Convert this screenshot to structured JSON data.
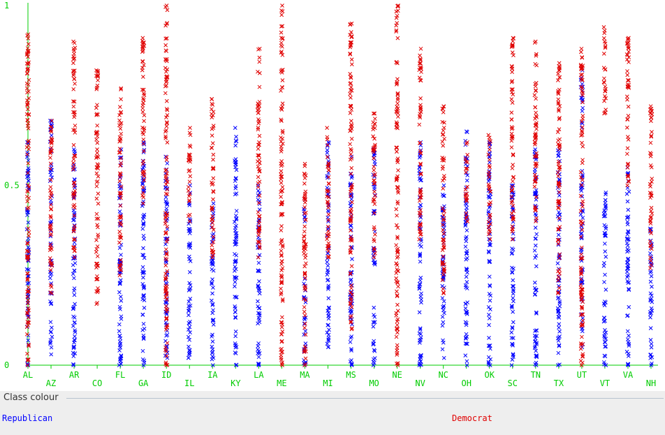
{
  "legend": {
    "title": "Class colour",
    "items": [
      {
        "label": "Republican",
        "color": "#0000ff"
      },
      {
        "label": "Democrat",
        "color": "#e00000"
      }
    ]
  },
  "chart_data": {
    "type": "scatter",
    "marker": "x",
    "x_axis": {
      "type": "categorical",
      "categories": [
        "AL",
        "AZ",
        "AR",
        "CO",
        "FL",
        "GA",
        "ID",
        "IL",
        "IA",
        "KY",
        "LA",
        "ME",
        "MA",
        "MI",
        "MS",
        "MO",
        "NE",
        "NV",
        "NC",
        "OH",
        "OK",
        "SC",
        "TN",
        "TX",
        "UT",
        "VT",
        "VA",
        "NH"
      ]
    },
    "y_axis": {
      "ylim": [
        0,
        1
      ],
      "ticks": [
        "0",
        "0.5",
        "1"
      ]
    },
    "axis_color": "#00cc00",
    "series": [
      {
        "name": "Republican",
        "color": "#0000ff",
        "values": {
          "AL": [
            [
              0.0,
              0.62
            ]
          ],
          "AZ": [
            [
              0.03,
              0.12
            ],
            [
              0.17,
              0.4
            ],
            [
              0.45,
              0.68
            ]
          ],
          "AR": [
            [
              0.0,
              0.6
            ]
          ],
          "CO": [],
          "FL": [
            [
              0.0,
              0.6
            ]
          ],
          "GA": [
            [
              0.0,
              0.62
            ]
          ],
          "ID": [
            [
              0.02,
              0.58
            ]
          ],
          "IL": [
            [
              0.02,
              0.5
            ]
          ],
          "IA": [
            [
              0.0,
              0.45
            ]
          ],
          "KY": [
            [
              0.0,
              0.66
            ]
          ],
          "LA": [
            [
              0.0,
              0.5
            ]
          ],
          "ME": [],
          "MA": [
            [
              0.0,
              0.24
            ],
            [
              0.4,
              0.46
            ]
          ],
          "MI": [
            [
              0.05,
              0.62
            ]
          ],
          "MS": [
            [
              0.0,
              0.58
            ]
          ],
          "MO": [
            [
              0.0,
              0.16
            ],
            [
              0.28,
              0.6
            ]
          ],
          "NE": [],
          "NV": [
            [
              0.0,
              0.62
            ]
          ],
          "NC": [
            [
              0.02,
              0.5
            ]
          ],
          "OH": [
            [
              0.0,
              0.65
            ]
          ],
          "OK": [
            [
              0.0,
              0.62
            ]
          ],
          "SC": [
            [
              0.0,
              0.5
            ]
          ],
          "TN": [
            [
              0.0,
              0.6
            ]
          ],
          "TX": [
            [
              0.0,
              0.6
            ]
          ],
          "UT": [
            [
              0.05,
              0.54
            ],
            [
              0.66,
              0.82
            ]
          ],
          "VT": [
            [
              0.0,
              0.48
            ]
          ],
          "VA": [
            [
              0.0,
              0.55
            ]
          ],
          "NH": [
            [
              0.0,
              0.38
            ]
          ]
        }
      },
      {
        "name": "Democrat",
        "color": "#e00000",
        "values": {
          "AL": [
            [
              0.0,
              0.92
            ]
          ],
          "AZ": [
            [
              0.2,
              0.68
            ]
          ],
          "AR": [
            [
              0.3,
              0.9
            ]
          ],
          "CO": [
            [
              0.17,
              0.82
            ]
          ],
          "FL": [
            [
              0.25,
              0.77
            ]
          ],
          "GA": [
            [
              0.45,
              0.91
            ]
          ],
          "ID": [
            [
              0.0,
              1.0
            ]
          ],
          "IL": [
            [
              0.4,
              0.66
            ]
          ],
          "IA": [
            [
              0.3,
              0.74
            ]
          ],
          "KY": [],
          "LA": [
            [
              0.3,
              0.88
            ]
          ],
          "ME": [
            [
              0.0,
              1.0
            ]
          ],
          "MA": [
            [
              0.0,
              0.56
            ]
          ],
          "MI": [
            [
              0.3,
              0.66
            ]
          ],
          "MS": [
            [
              0.1,
              0.95
            ]
          ],
          "MO": [
            [
              0.3,
              0.7
            ]
          ],
          "NE": [
            [
              0.0,
              1.0
            ]
          ],
          "NV": [
            [
              0.35,
              0.88
            ]
          ],
          "NC": [
            [
              0.2,
              0.72
            ]
          ],
          "OH": [
            [
              0.4,
              0.62
            ]
          ],
          "OK": [
            [
              0.35,
              0.64
            ]
          ],
          "SC": [
            [
              0.35,
              0.91
            ]
          ],
          "TN": [
            [
              0.4,
              0.9
            ]
          ],
          "TX": [
            [
              0.2,
              0.84
            ]
          ],
          "UT": [
            [
              0.0,
              0.88
            ]
          ],
          "VT": [
            [
              0.7,
              0.94
            ]
          ],
          "VA": [
            [
              0.5,
              0.91
            ]
          ],
          "NH": [
            [
              0.27,
              0.72
            ]
          ]
        }
      }
    ]
  }
}
